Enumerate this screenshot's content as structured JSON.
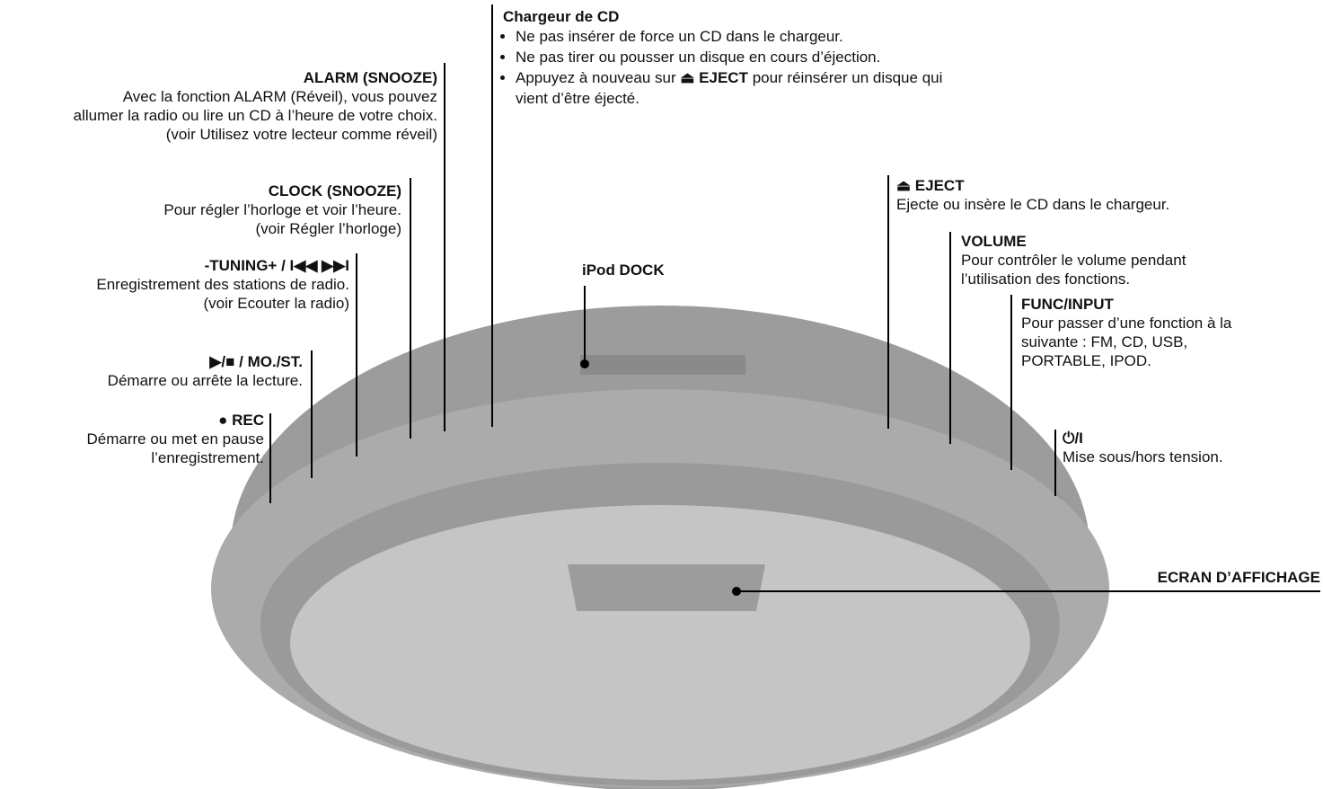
{
  "cd_loader": {
    "title": "Chargeur de CD",
    "bullets": [
      "Ne pas insérer de force un CD dans le chargeur.",
      "Ne pas tirer ou pousser un disque en cours d’éjection.",
      {
        "before": "Appuyez à nouveau sur",
        "strong": "⏏ EJECT",
        "after": "pour réinsérer un disque qui",
        "continued": "vient d’être éjecté."
      }
    ]
  },
  "callouts": [
    {
      "title": "ALARM (SNOOZE)",
      "lines": [
        "Avec la fonction ALARM (Réveil), vous pouvez",
        "allumer la radio ou lire un CD à l’heure de votre choix.",
        "(voir Utilisez votre lecteur comme réveil)"
      ]
    },
    {
      "title": "CLOCK (SNOOZE)",
      "lines": [
        "Pour régler l’horloge et voir l’heure.",
        "(voir Régler l’horloge)"
      ]
    },
    {
      "title": "-TUNING+ / I◀◀ ▶▶I",
      "lines": [
        "Enregistrement des stations de radio.",
        "(voir Ecouter la radio)"
      ]
    },
    {
      "title": "▶/■ / MO./ST.",
      "lines": [
        "Démarre ou arrête la lecture."
      ]
    },
    {
      "title": "● REC",
      "lines": [
        "Démarre ou met en pause",
        "l’enregistrement."
      ]
    },
    {
      "title": "iPod DOCK",
      "lines": []
    },
    {
      "title": "⏏ EJECT",
      "lines": [
        "Ejecte ou insère le CD dans le chargeur."
      ]
    },
    {
      "title": "VOLUME",
      "lines": [
        "Pour contrôler le volume pendant",
        "l’utilisation des fonctions."
      ]
    },
    {
      "title": "FUNC/INPUT",
      "lines": [
        "Pour passer d’une fonction à la",
        "suivante : FM, CD, USB,",
        "PORTABLE, IPOD."
      ]
    },
    {
      "title": "⏻/I",
      "lines": [
        "Mise sous/hors tension."
      ]
    },
    {
      "title": "ECRAN D’AFFICHAGE",
      "lines": []
    }
  ]
}
